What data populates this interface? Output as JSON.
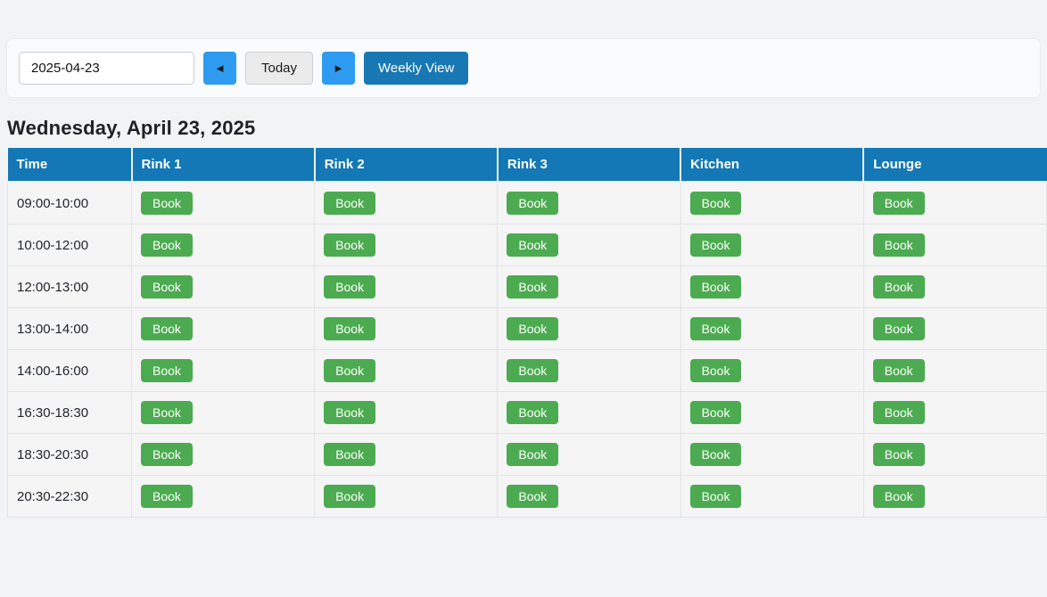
{
  "toolbar": {
    "date_input_value": "2025-04-23",
    "prev_button_label": "◄",
    "today_button_label": "Today",
    "next_button_label": "►",
    "weekly_view_button_label": "Weekly View"
  },
  "heading": {
    "day_title": "Wednesday, April 23, 2025"
  },
  "schedule_table": {
    "columns": [
      "Time",
      "Rink 1",
      "Rink 2",
      "Rink 3",
      "Kitchen",
      "Lounge"
    ],
    "time_slots": [
      "09:00-10:00",
      "10:00-12:00",
      "12:00-13:00",
      "13:00-14:00",
      "14:00-16:00",
      "16:30-18:30",
      "18:30-20:30",
      "20:30-22:30"
    ],
    "book_button_label": "Book"
  },
  "colors": {
    "page_background": "#f2f3f5",
    "table_header_blue": "#1378b5",
    "nav_button_blue": "#2d9cf0",
    "weekly_view_blue": "#1878b4",
    "book_button_green": "#4cab50"
  }
}
